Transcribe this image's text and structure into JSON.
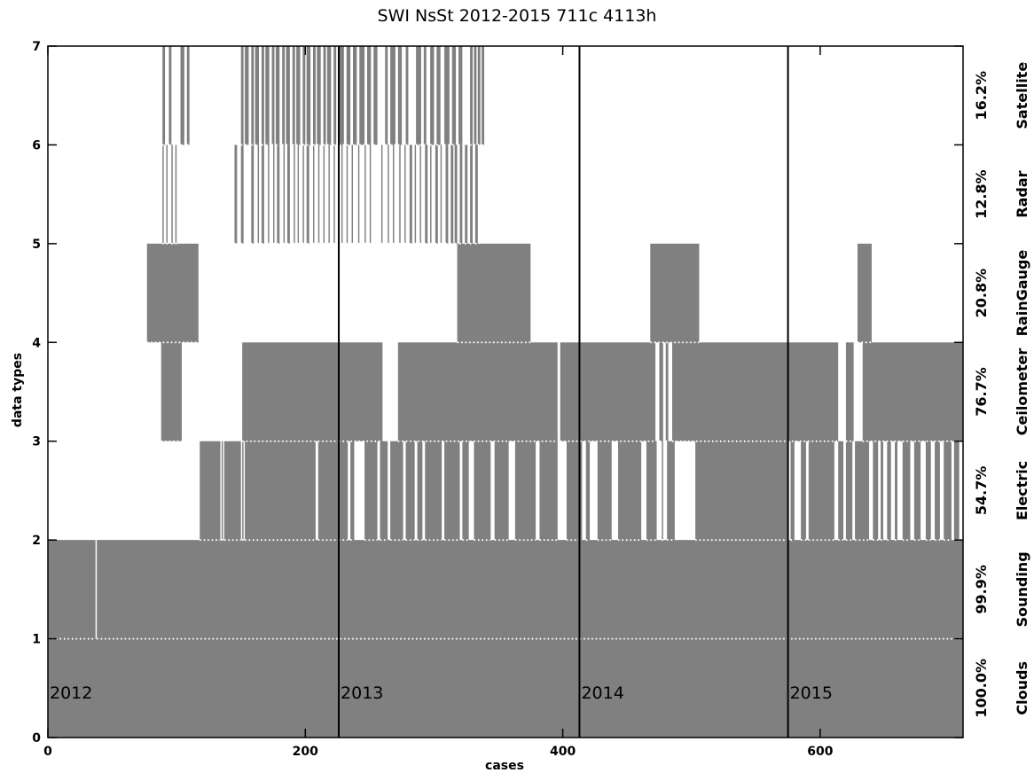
{
  "chart_data": {
    "type": "heatmap",
    "title": "SWI NsSt 2012-2015   711c 4113h",
    "xlabel": "cases",
    "ylabel": "data types",
    "xlim": [
      0,
      711
    ],
    "ylim": [
      0,
      7
    ],
    "x_ticks": [
      "0",
      "200",
      "400",
      "600"
    ],
    "y_ticks": [
      "0",
      "1",
      "2",
      "3",
      "4",
      "5",
      "6",
      "7"
    ],
    "fill_color": "#808080",
    "year_separators": [
      {
        "label": "2012",
        "x": 0
      },
      {
        "label": "2013",
        "x": 226
      },
      {
        "label": "2014",
        "x": 413
      },
      {
        "label": "2015",
        "x": 575
      }
    ],
    "rows": [
      {
        "name": "Clouds",
        "percent": "100.0%",
        "y": 0,
        "coverage": [
          [
            0,
            711
          ]
        ]
      },
      {
        "name": "Sounding",
        "percent": "99.9%",
        "y": 1,
        "coverage": [
          [
            0,
            37
          ],
          [
            38,
            711
          ]
        ]
      },
      {
        "name": "Electric",
        "percent": "54.7%",
        "y": 2,
        "coverage": [
          [
            118,
            134
          ],
          [
            135,
            136
          ],
          [
            137,
            150
          ],
          [
            151,
            152
          ],
          [
            153,
            208
          ],
          [
            210,
            226
          ],
          [
            226,
            233
          ],
          [
            235,
            238
          ],
          [
            246,
            256
          ],
          [
            258,
            264
          ],
          [
            266,
            276
          ],
          [
            278,
            285
          ],
          [
            287,
            291
          ],
          [
            293,
            306
          ],
          [
            308,
            320
          ],
          [
            322,
            327
          ],
          [
            331,
            344
          ],
          [
            347,
            358
          ],
          [
            363,
            379
          ],
          [
            382,
            396
          ],
          [
            403,
            415
          ],
          [
            418,
            421
          ],
          [
            427,
            438
          ],
          [
            443,
            461
          ],
          [
            465,
            473
          ],
          [
            477,
            478
          ],
          [
            481,
            487
          ],
          [
            503,
            575
          ],
          [
            577,
            580
          ],
          [
            585,
            589
          ],
          [
            591,
            611
          ],
          [
            614,
            618
          ],
          [
            620,
            625
          ],
          [
            627,
            638
          ],
          [
            641,
            645
          ],
          [
            647,
            649
          ],
          [
            652,
            655
          ],
          [
            658,
            660
          ],
          [
            664,
            670
          ],
          [
            673,
            678
          ],
          [
            682,
            686
          ],
          [
            689,
            693
          ],
          [
            696,
            702
          ],
          [
            704,
            708
          ]
        ]
      },
      {
        "name": "Ceilometer",
        "percent": "76.7%",
        "y": 3,
        "coverage": [
          [
            88,
            104
          ],
          [
            151,
            226
          ],
          [
            226,
            260
          ],
          [
            272,
            396
          ],
          [
            398,
            472
          ],
          [
            475,
            478
          ],
          [
            480,
            482
          ],
          [
            485,
            614
          ],
          [
            620,
            626
          ],
          [
            633,
            711
          ]
        ]
      },
      {
        "name": "RainGauge",
        "percent": "20.8%",
        "y": 4,
        "coverage": [
          [
            77,
            117
          ],
          [
            318,
            375
          ],
          [
            468,
            506
          ],
          [
            629,
            640
          ]
        ]
      },
      {
        "name": "Radar",
        "percent": "12.8%",
        "y": 5,
        "coverage": [
          [
            89,
            90
          ],
          [
            92,
            93
          ],
          [
            96,
            97
          ],
          [
            99,
            100
          ],
          [
            145,
            147
          ],
          [
            150,
            152
          ],
          [
            158,
            160
          ],
          [
            163,
            164
          ],
          [
            166,
            168
          ],
          [
            171,
            172
          ],
          [
            175,
            176
          ],
          [
            178,
            180
          ],
          [
            183,
            184
          ],
          [
            186,
            188
          ],
          [
            191,
            192
          ],
          [
            194,
            195
          ],
          [
            198,
            199
          ],
          [
            201,
            203
          ],
          [
            206,
            207
          ],
          [
            210,
            211
          ],
          [
            214,
            215
          ],
          [
            218,
            219
          ],
          [
            222,
            223
          ],
          [
            228,
            229
          ],
          [
            232,
            233
          ],
          [
            236,
            237
          ],
          [
            241,
            242
          ],
          [
            246,
            247
          ],
          [
            250,
            251
          ],
          [
            259,
            260
          ],
          [
            264,
            265
          ],
          [
            268,
            269
          ],
          [
            273,
            274
          ],
          [
            277,
            278
          ],
          [
            281,
            283
          ],
          [
            285,
            286
          ],
          [
            289,
            290
          ],
          [
            293,
            295
          ],
          [
            297,
            298
          ],
          [
            301,
            303
          ],
          [
            305,
            306
          ],
          [
            309,
            311
          ],
          [
            313,
            315
          ],
          [
            316,
            318
          ],
          [
            320,
            322
          ],
          [
            324,
            326
          ],
          [
            328,
            330
          ],
          [
            332,
            334
          ]
        ]
      },
      {
        "name": "Satellite",
        "percent": "16.2%",
        "y": 6,
        "coverage": [
          [
            89,
            91
          ],
          [
            94,
            96
          ],
          [
            103,
            106
          ],
          [
            108,
            110
          ],
          [
            150,
            152
          ],
          [
            153,
            156
          ],
          [
            158,
            160
          ],
          [
            161,
            164
          ],
          [
            166,
            168
          ],
          [
            169,
            172
          ],
          [
            174,
            176
          ],
          [
            177,
            180
          ],
          [
            182,
            184
          ],
          [
            185,
            188
          ],
          [
            190,
            192
          ],
          [
            193,
            196
          ],
          [
            198,
            200
          ],
          [
            201,
            204
          ],
          [
            206,
            208
          ],
          [
            209,
            212
          ],
          [
            214,
            216
          ],
          [
            217,
            220
          ],
          [
            222,
            224
          ],
          [
            226,
            230
          ],
          [
            232,
            235
          ],
          [
            237,
            240
          ],
          [
            242,
            246
          ],
          [
            248,
            251
          ],
          [
            253,
            256
          ],
          [
            262,
            264
          ],
          [
            266,
            270
          ],
          [
            272,
            275
          ],
          [
            278,
            280
          ],
          [
            286,
            290
          ],
          [
            292,
            294
          ],
          [
            297,
            300
          ],
          [
            302,
            305
          ],
          [
            308,
            312
          ],
          [
            314,
            317
          ],
          [
            319,
            322
          ],
          [
            328,
            330
          ],
          [
            331,
            333
          ],
          [
            334,
            336
          ],
          [
            337,
            339
          ]
        ]
      }
    ]
  }
}
